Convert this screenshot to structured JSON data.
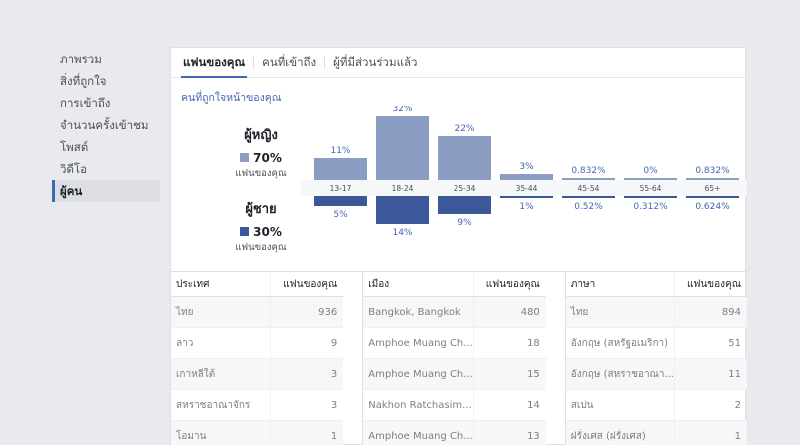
{
  "sidebar": {
    "items": [
      {
        "label": "ภาพรวม",
        "active": false
      },
      {
        "label": "สิ่งที่ถูกใจ",
        "active": false
      },
      {
        "label": "การเข้าถึง",
        "active": false
      },
      {
        "label": "จำนวนครั้งเข้าชม",
        "active": false
      },
      {
        "label": "โพสต์",
        "active": false
      },
      {
        "label": "วิดีโอ",
        "active": false
      },
      {
        "label": "ผู้คน",
        "active": true
      }
    ]
  },
  "tabs": [
    {
      "label": "แฟนของคุณ",
      "active": true
    },
    {
      "label": "คนที่เข้าถึง",
      "active": false
    },
    {
      "label": "ผู้ที่มีส่วนร่วมแล้ว",
      "active": false
    }
  ],
  "section_title": "คนที่ถูกใจหน้าของคุณ",
  "legend": {
    "women": {
      "heading": "ผู้หญิง",
      "percent": "70%",
      "sub": "แฟนของคุณ",
      "color": "#8b9dc3"
    },
    "men": {
      "heading": "ผู้ชาย",
      "percent": "30%",
      "sub": "แฟนของคุณ",
      "color": "#3b5998"
    }
  },
  "chart_data": {
    "type": "bar",
    "categories": [
      "13-17",
      "18-24",
      "25-34",
      "35-44",
      "45-54",
      "55-64",
      "65+"
    ],
    "series": [
      {
        "name": "ผู้หญิง",
        "values": [
          11,
          32,
          22,
          3,
          0.832,
          0,
          0.832
        ],
        "labels": [
          "11%",
          "32%",
          "22%",
          "3%",
          "0.832%",
          "0%",
          "0.832%"
        ],
        "color": "#8b9dc3"
      },
      {
        "name": "ผู้ชาย",
        "values": [
          5,
          14,
          9,
          1,
          0.52,
          0.312,
          0.624
        ],
        "labels": [
          "5%",
          "14%",
          "9%",
          "1%",
          "0.52%",
          "0.312%",
          "0.624%"
        ],
        "color": "#3b5998"
      }
    ]
  },
  "tables": [
    {
      "col1": "ประเทศ",
      "col2": "แฟนของคุณ",
      "rows": [
        {
          "name": "ไทย",
          "value": "936"
        },
        {
          "name": "ลาว",
          "value": "9"
        },
        {
          "name": "เกาหลีใต้",
          "value": "3"
        },
        {
          "name": "สหราชอาณาจักร",
          "value": "3"
        },
        {
          "name": "โอมาน",
          "value": "1"
        }
      ]
    },
    {
      "col1": "เมือง",
      "col2": "แฟนของคุณ",
      "rows": [
        {
          "name": "Bangkok, Bangkok",
          "value": "480"
        },
        {
          "name": "Amphoe Muang Ch...",
          "value": "18"
        },
        {
          "name": "Amphoe Muang Ch...",
          "value": "15"
        },
        {
          "name": "Nakhon Ratchasim...",
          "value": "14"
        },
        {
          "name": "Amphoe Muang Ch...",
          "value": "13"
        }
      ]
    },
    {
      "col1": "ภาษา",
      "col2": "แฟนของคุณ",
      "rows": [
        {
          "name": "ไทย",
          "value": "894"
        },
        {
          "name": "อังกฤษ (สหรัฐอเมริกา)",
          "value": "51"
        },
        {
          "name": "อังกฤษ (สหราชอาณา...",
          "value": "11"
        },
        {
          "name": "สเปน",
          "value": "2"
        },
        {
          "name": "ฝรั่งเศส (ฝรั่งเศส)",
          "value": "1"
        }
      ]
    }
  ]
}
